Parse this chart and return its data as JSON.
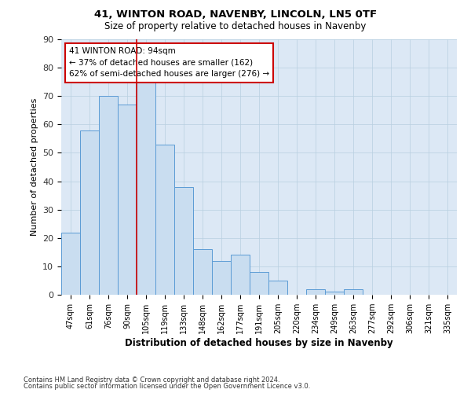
{
  "title1": "41, WINTON ROAD, NAVENBY, LINCOLN, LN5 0TF",
  "title2": "Size of property relative to detached houses in Navenby",
  "xlabel": "Distribution of detached houses by size in Navenby",
  "ylabel": "Number of detached properties",
  "bin_labels": [
    "47sqm",
    "61sqm",
    "76sqm",
    "90sqm",
    "105sqm",
    "119sqm",
    "133sqm",
    "148sqm",
    "162sqm",
    "177sqm",
    "191sqm",
    "205sqm",
    "220sqm",
    "234sqm",
    "249sqm",
    "263sqm",
    "277sqm",
    "292sqm",
    "306sqm",
    "321sqm",
    "335sqm"
  ],
  "bar_heights": [
    22,
    58,
    70,
    67,
    76,
    53,
    38,
    16,
    12,
    14,
    8,
    5,
    0,
    2,
    1,
    2,
    0,
    0,
    0,
    0,
    0
  ],
  "bar_color": "#c9ddf0",
  "bar_edge_color": "#5b9bd5",
  "property_line_x": 3.5,
  "annotation_title": "41 WINTON ROAD: 94sqm",
  "annotation_line1": "← 37% of detached houses are smaller (162)",
  "annotation_line2": "62% of semi-detached houses are larger (276) →",
  "annotation_box_color": "#ffffff",
  "annotation_box_edge": "#cc0000",
  "line_color": "#cc0000",
  "ylim": [
    0,
    90
  ],
  "yticks": [
    0,
    10,
    20,
    30,
    40,
    50,
    60,
    70,
    80,
    90
  ],
  "footer1": "Contains HM Land Registry data © Crown copyright and database right 2024.",
  "footer2": "Contains public sector information licensed under the Open Government Licence v3.0.",
  "bg_color": "#ffffff",
  "plot_bg_color": "#dce8f5",
  "grid_color": "#b8cfe0"
}
